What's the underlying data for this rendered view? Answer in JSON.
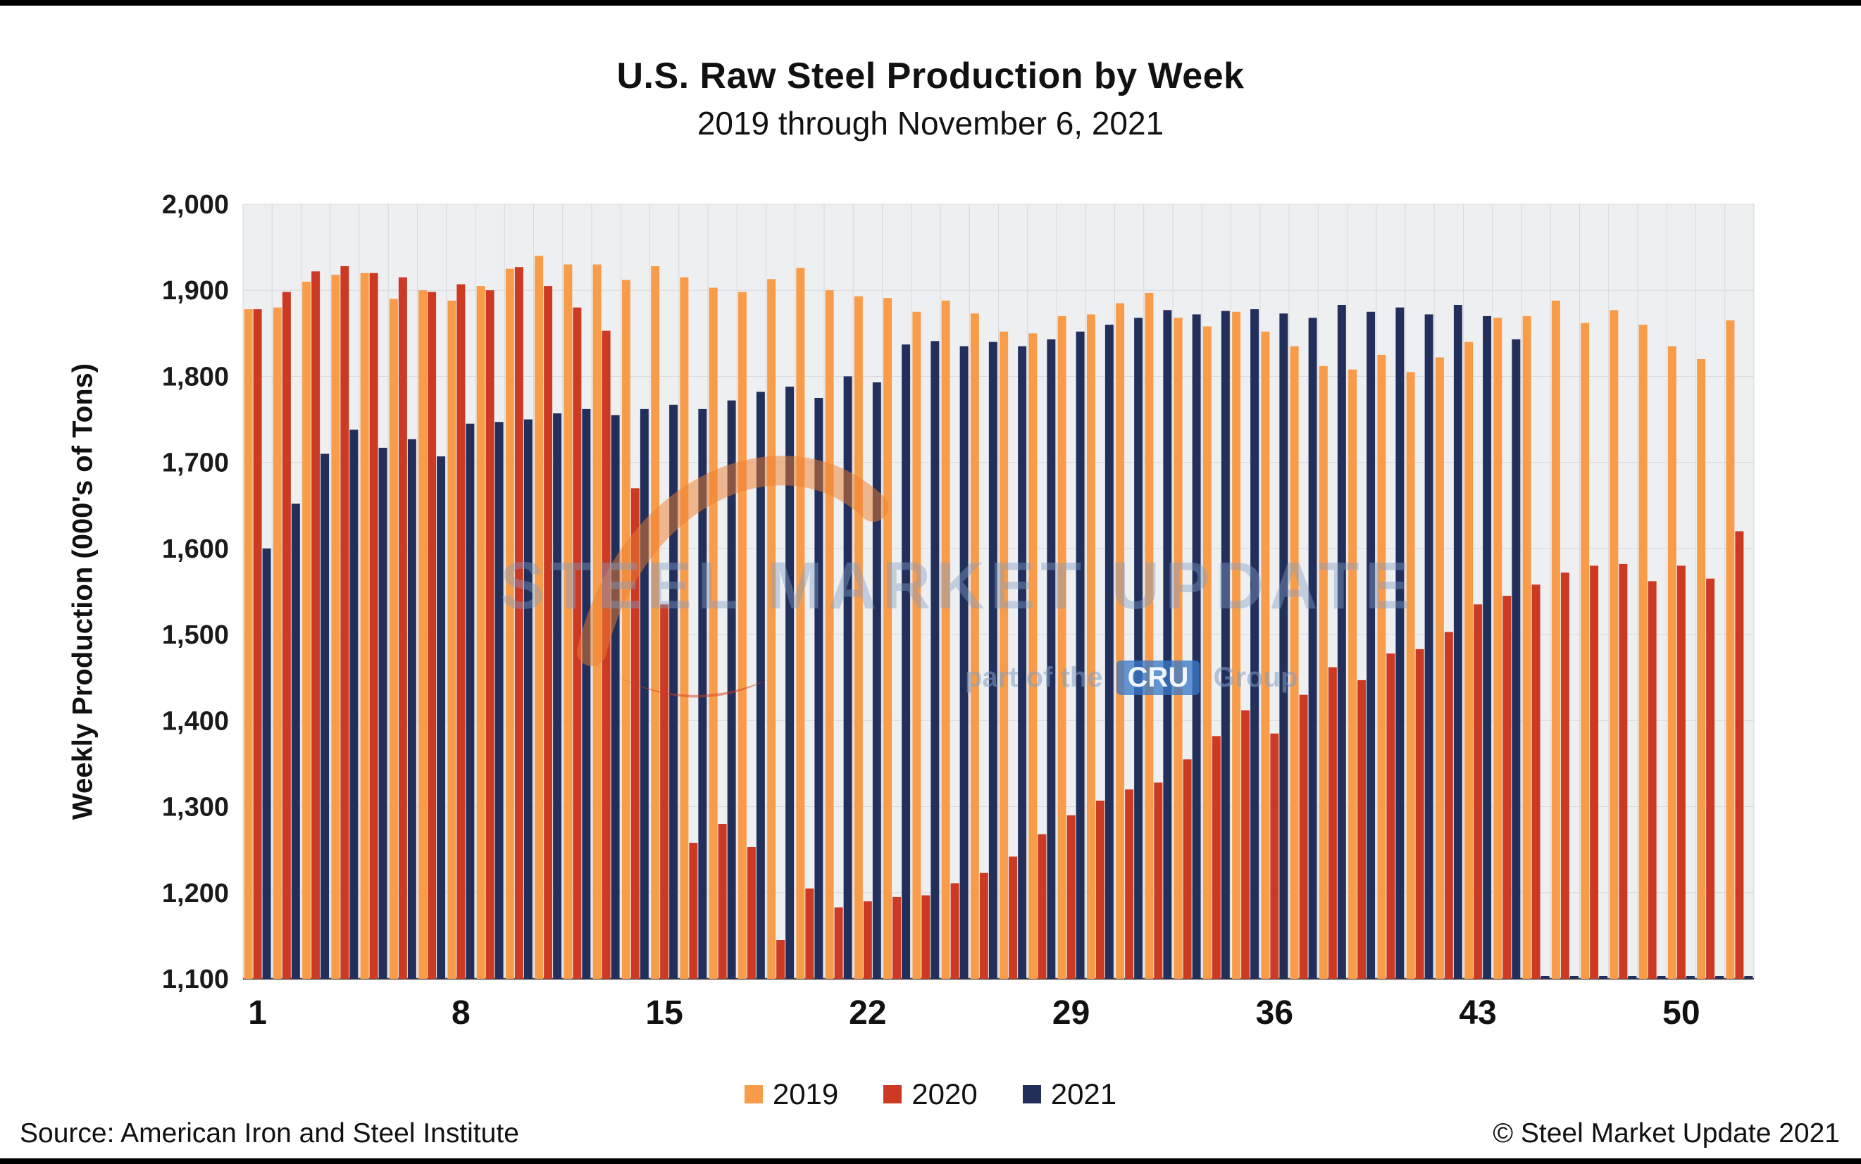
{
  "page": {
    "title": "U.S. Raw Steel Production by Week",
    "subtitle": "2019 through November 6, 2021",
    "source": "Source: American Iron and Steel Institute",
    "copyright": "© Steel Market Update 2021"
  },
  "watermark": {
    "line1": "STEEL MARKET UPDATE",
    "line2_prefix": "part of the",
    "cru": "CRU",
    "line2_suffix": "Group"
  },
  "chart_data": {
    "type": "bar",
    "title": "U.S. Raw Steel Production by Week",
    "subtitle": "2019 through November 6, 2021",
    "xlabel": "",
    "ylabel": "Weekly Production (000's of Tons)",
    "ylim": [
      1100,
      2000
    ],
    "ytick_step": 100,
    "grid": true,
    "legend_position": "bottom",
    "plot_bg": "#EEEFF1",
    "grid_color": "#D6D8DB",
    "axis_color": "#4D4D4D",
    "x": [
      1,
      2,
      3,
      4,
      5,
      6,
      7,
      8,
      9,
      10,
      11,
      12,
      13,
      14,
      15,
      16,
      17,
      18,
      19,
      20,
      21,
      22,
      23,
      24,
      25,
      26,
      27,
      28,
      29,
      30,
      31,
      32,
      33,
      34,
      35,
      36,
      37,
      38,
      39,
      40,
      41,
      42,
      43,
      44,
      45,
      46,
      47,
      48,
      49,
      50,
      51,
      52
    ],
    "xticks": [
      1,
      8,
      15,
      22,
      29,
      36,
      43,
      50
    ],
    "series": [
      {
        "name": "2019",
        "color": "#F89C4A",
        "values": [
          1878,
          1880,
          1910,
          1918,
          1920,
          1890,
          1900,
          1888,
          1905,
          1925,
          1940,
          1930,
          1930,
          1912,
          1928,
          1915,
          1903,
          1898,
          1913,
          1926,
          1900,
          1893,
          1891,
          1875,
          1888,
          1873,
          1852,
          1850,
          1870,
          1872,
          1885,
          1897,
          1868,
          1858,
          1875,
          1852,
          1835,
          1812,
          1808,
          1825,
          1805,
          1822,
          1840,
          1868,
          1870,
          1888,
          1862,
          1877,
          1860,
          1835,
          1820,
          1865
        ]
      },
      {
        "name": "2020",
        "color": "#CC3A24",
        "values": [
          1878,
          1898,
          1922,
          1928,
          1920,
          1915,
          1898,
          1907,
          1900,
          1927,
          1905,
          1880,
          1853,
          1670,
          1535,
          1258,
          1280,
          1253,
          1145,
          1205,
          1183,
          1190,
          1195,
          1197,
          1211,
          1223,
          1242,
          1268,
          1290,
          1307,
          1320,
          1328,
          1355,
          1382,
          1412,
          1385,
          1430,
          1462,
          1447,
          1478,
          1483,
          1503,
          1535,
          1545,
          1558,
          1572,
          1580,
          1582,
          1562,
          1580,
          1565,
          1620
        ]
      },
      {
        "name": "2021",
        "color": "#222F5B",
        "values": [
          1600,
          1652,
          1710,
          1738,
          1717,
          1727,
          1707,
          1745,
          1747,
          1750,
          1757,
          1762,
          1755,
          1762,
          1767,
          1762,
          1772,
          1782,
          1788,
          1775,
          1800,
          1793,
          1837,
          1841,
          1835,
          1840,
          1835,
          1843,
          1852,
          1860,
          1868,
          1877,
          1872,
          1876,
          1878,
          1873,
          1868,
          1883,
          1875,
          1880,
          1872,
          1883,
          1870,
          1843,
          null,
          null,
          null,
          null,
          null,
          null,
          null,
          null
        ]
      }
    ]
  }
}
